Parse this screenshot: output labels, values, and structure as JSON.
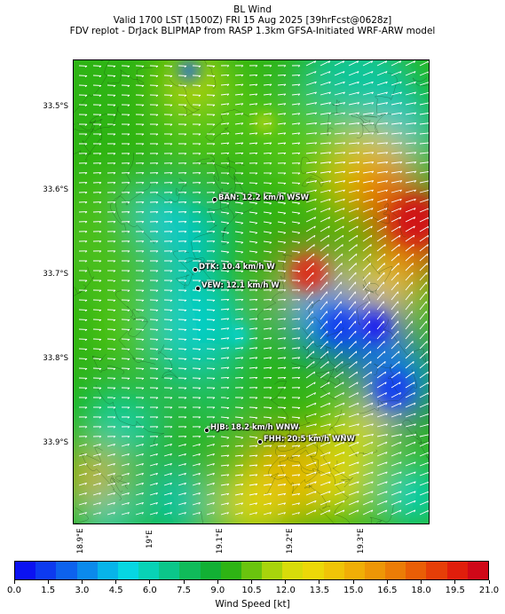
{
  "titles": {
    "line1": "BL Wind",
    "line2": "Valid 1700 LST (1500Z) FRI 15 Aug 2025 [39hrFcst@0628z]",
    "line3": "FDV replot - DrJack BLIPMAP from RASP 1.3km GFSA-Initiated WRF-ARW model"
  },
  "axes": {
    "lat_labels": [
      "33.5°S",
      "33.6°S",
      "33.7°S",
      "33.8°S",
      "33.9°S"
    ],
    "lon_labels": [
      "18.9°E",
      "19°E",
      "19.1°E",
      "19.2°E",
      "19.3°E"
    ]
  },
  "stations": [
    {
      "label": "BAN: 12.2 km/h WSW"
    },
    {
      "label": "DTK: 10.4 km/h W"
    },
    {
      "label": "VEW: 12.1 km/h W"
    },
    {
      "label": "HJB: 18.2 km/h WNW"
    },
    {
      "label": "FHH: 20.5 km/h WNW"
    }
  ],
  "colorbar": {
    "title": "Wind Speed [kt]",
    "tick_labels": [
      "0.0",
      "1.5",
      "3.0",
      "4.5",
      "6.0",
      "7.5",
      "9.0",
      "10.5",
      "12.0",
      "13.5",
      "15.0",
      "16.5",
      "18.0",
      "19.5",
      "21.0"
    ],
    "colors": [
      "#0b12f2",
      "#0d3af0",
      "#0d62ee",
      "#0b8aec",
      "#07b4ea",
      "#06d6e2",
      "#08d2b6",
      "#0bc68a",
      "#10bb5a",
      "#12b034",
      "#2eb414",
      "#6ac40e",
      "#a8d40c",
      "#d8dc0a",
      "#ecd808",
      "#f0c407",
      "#f0ae06",
      "#ee9606",
      "#ec7c06",
      "#ea5e06",
      "#e63e08",
      "#e01e0c",
      "#d00818"
    ]
  }
}
